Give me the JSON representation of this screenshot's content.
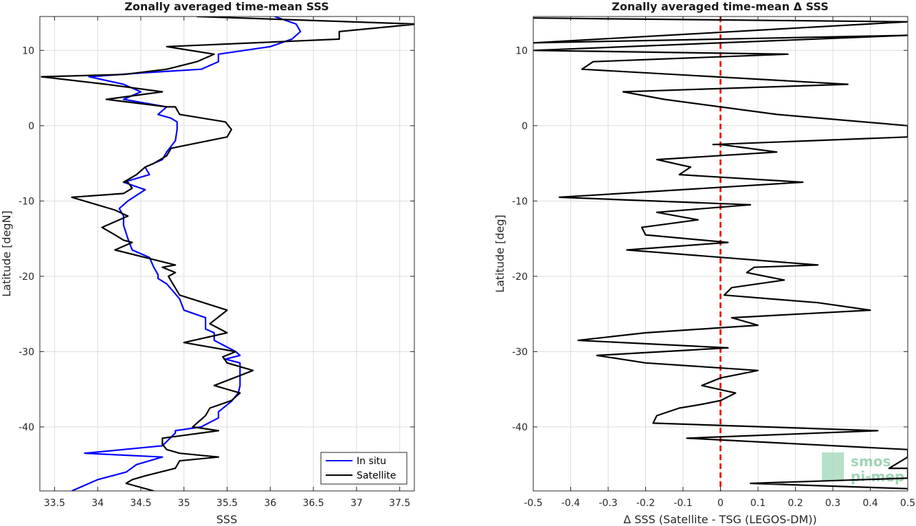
{
  "chart_data": [
    {
      "type": "line",
      "title": "Zonally averaged time-mean SSS",
      "xlabel": "SSS",
      "ylabel": "Latitude [degN]",
      "xlim": [
        33.33,
        37.67
      ],
      "ylim": [
        -48.5,
        14.5
      ],
      "xticks": [
        33.5,
        34,
        34.5,
        35,
        35.5,
        36,
        36.5,
        37,
        37.5
      ],
      "yticks": [
        -40,
        -30,
        -20,
        -10,
        0,
        10
      ],
      "grid": true,
      "legend": "bottom-right",
      "series": [
        {
          "name": "In situ",
          "color": "#0000ff",
          "points": [
            [
              33.7,
              -48.5
            ],
            [
              34.0,
              -47.0
            ],
            [
              34.33,
              -46.0
            ],
            [
              34.45,
              -45.0
            ],
            [
              34.75,
              -44.0
            ],
            [
              33.85,
              -43.5
            ],
            [
              34.75,
              -42.5
            ],
            [
              34.9,
              -40.8
            ],
            [
              34.9,
              -40.5
            ],
            [
              35.2,
              -40.0
            ],
            [
              35.4,
              -38.8
            ],
            [
              35.4,
              -38.0
            ],
            [
              35.55,
              -36.6
            ],
            [
              35.63,
              -35.5
            ],
            [
              35.65,
              -34.5
            ],
            [
              35.65,
              -33.5
            ],
            [
              35.65,
              -32.0
            ],
            [
              35.65,
              -31.5
            ],
            [
              35.48,
              -31.0
            ],
            [
              35.65,
              -30.5
            ],
            [
              35.6,
              -30.0
            ],
            [
              35.35,
              -28.5
            ],
            [
              35.35,
              -27.5
            ],
            [
              35.25,
              -27.0
            ],
            [
              35.25,
              -25.5
            ],
            [
              35.0,
              -24.5
            ],
            [
              34.95,
              -23.0
            ],
            [
              34.8,
              -21.0
            ],
            [
              34.7,
              -20.3
            ],
            [
              34.7,
              -19.8
            ],
            [
              34.65,
              -18.8
            ],
            [
              34.6,
              -17.5
            ],
            [
              34.4,
              -16.5
            ],
            [
              34.35,
              -15.0
            ],
            [
              34.3,
              -13.2
            ],
            [
              34.3,
              -12.0
            ],
            [
              34.25,
              -11.0
            ],
            [
              34.35,
              -10.0
            ],
            [
              34.55,
              -8.5
            ],
            [
              34.3,
              -7.5
            ],
            [
              34.6,
              -6.5
            ],
            [
              34.55,
              -5.5
            ],
            [
              34.75,
              -4.5
            ],
            [
              34.8,
              -3.5
            ],
            [
              34.9,
              -2.0
            ],
            [
              34.92,
              -0.5
            ],
            [
              34.92,
              0.5
            ],
            [
              34.85,
              1.0
            ],
            [
              34.7,
              1.5
            ],
            [
              34.8,
              2.5
            ],
            [
              34.3,
              3.5
            ],
            [
              34.5,
              4.5
            ],
            [
              34.3,
              5.5
            ],
            [
              33.9,
              6.5
            ],
            [
              34.5,
              7.0
            ],
            [
              35.2,
              7.5
            ],
            [
              35.4,
              8.5
            ],
            [
              35.4,
              9.5
            ],
            [
              36.0,
              10.5
            ],
            [
              36.25,
              11.5
            ],
            [
              36.35,
              12.5
            ],
            [
              36.3,
              13.5
            ],
            [
              36.05,
              14.5
            ]
          ]
        },
        {
          "name": "Satellite",
          "color": "#000000",
          "points": [
            [
              34.65,
              -48.5
            ],
            [
              34.33,
              -47.5
            ],
            [
              34.4,
              -47.0
            ],
            [
              34.55,
              -46.5
            ],
            [
              34.9,
              -45.5
            ],
            [
              34.95,
              -44.5
            ],
            [
              35.4,
              -44.0
            ],
            [
              34.95,
              -43.5
            ],
            [
              34.8,
              -43.0
            ],
            [
              34.75,
              -42.3
            ],
            [
              34.75,
              -41.5
            ],
            [
              35.4,
              -40.5
            ],
            [
              35.1,
              -40.0
            ],
            [
              35.25,
              -38.5
            ],
            [
              35.3,
              -37.5
            ],
            [
              35.55,
              -36.5
            ],
            [
              35.65,
              -35.5
            ],
            [
              35.35,
              -34.5
            ],
            [
              35.8,
              -32.5
            ],
            [
              35.5,
              -31.5
            ],
            [
              35.45,
              -30.7
            ],
            [
              35.6,
              -30.0
            ],
            [
              35.0,
              -28.8
            ],
            [
              35.5,
              -27.5
            ],
            [
              35.3,
              -26.3
            ],
            [
              35.5,
              -24.5
            ],
            [
              34.95,
              -22.5
            ],
            [
              34.85,
              -20.6
            ],
            [
              34.82,
              -20.0
            ],
            [
              34.9,
              -19.5
            ],
            [
              34.75,
              -18.8
            ],
            [
              34.9,
              -18.5
            ],
            [
              34.2,
              -16.5
            ],
            [
              34.4,
              -15.5
            ],
            [
              34.3,
              -15.2
            ],
            [
              34.2,
              -14.5
            ],
            [
              34.05,
              -13.5
            ],
            [
              34.35,
              -12.0
            ],
            [
              34.2,
              -11.2
            ],
            [
              33.7,
              -9.5
            ],
            [
              34.3,
              -9.0
            ],
            [
              34.4,
              -8.3
            ],
            [
              34.35,
              -7.5
            ],
            [
              34.3,
              -7.5
            ],
            [
              34.45,
              -6.5
            ],
            [
              34.55,
              -5.5
            ],
            [
              34.65,
              -5.0
            ],
            [
              34.8,
              -4.0
            ],
            [
              34.85,
              -3.0
            ],
            [
              35.5,
              -1.5
            ],
            [
              35.55,
              -0.5
            ],
            [
              35.48,
              0.5
            ],
            [
              34.95,
              1.5
            ],
            [
              34.9,
              2.5
            ],
            [
              34.8,
              2.5
            ],
            [
              34.1,
              3.5
            ],
            [
              34.75,
              4.5
            ],
            [
              34.1,
              5.5
            ],
            [
              33.35,
              6.5
            ],
            [
              34.3,
              6.8
            ],
            [
              34.8,
              7.5
            ],
            [
              35.15,
              8.5
            ],
            [
              35.35,
              9.5
            ],
            [
              34.8,
              10.5
            ],
            [
              36.8,
              11.5
            ],
            [
              36.8,
              12.5
            ],
            [
              37.7,
              13.5
            ],
            [
              35.15,
              14.5
            ]
          ]
        }
      ]
    },
    {
      "type": "line",
      "title": "Zonally averaged time-mean Δ SSS",
      "xlabel": "Δ SSS (Satellite - TSG (LEGOS-DM))",
      "ylabel": "Latitude [deg]",
      "xlim": [
        -0.5,
        0.5
      ],
      "ylim": [
        -48.5,
        14.5
      ],
      "xticks": [
        -0.5,
        -0.4,
        -0.3,
        -0.2,
        -0.1,
        0,
        0.1,
        0.2,
        0.3,
        0.4,
        0.5
      ],
      "yticks": [
        -40,
        -30,
        -20,
        -10,
        0,
        10
      ],
      "grid": true,
      "reference_line": {
        "x": 0,
        "color": "#e8261b",
        "style": "dashed"
      },
      "series": [
        {
          "name": "",
          "color": "#000000",
          "points": [
            [
              0.5,
              -48.2
            ],
            [
              0.08,
              -47.5
            ],
            [
              0.5,
              -46.8
            ],
            [
              0.5,
              -45.5
            ],
            [
              0.45,
              -45.5
            ],
            [
              0.5,
              -44.0
            ],
            [
              0.5,
              -43.0
            ],
            [
              -0.09,
              -41.5
            ],
            [
              0.42,
              -40.5
            ],
            [
              -0.18,
              -39.5
            ],
            [
              -0.17,
              -38.5
            ],
            [
              -0.11,
              -37.5
            ],
            [
              -0.05,
              -37.0
            ],
            [
              0.0,
              -36.5
            ],
            [
              0.04,
              -35.5
            ],
            [
              -0.05,
              -34.5
            ],
            [
              0.0,
              -33.5
            ],
            [
              0.1,
              -32.5
            ],
            [
              -0.2,
              -31.5
            ],
            [
              -0.33,
              -30.5
            ],
            [
              0.02,
              -29.5
            ],
            [
              -0.38,
              -28.5
            ],
            [
              -0.2,
              -27.5
            ],
            [
              0.1,
              -26.5
            ],
            [
              0.03,
              -25.5
            ],
            [
              0.4,
              -24.5
            ],
            [
              0.26,
              -23.5
            ],
            [
              0.01,
              -22.5
            ],
            [
              0.03,
              -21.5
            ],
            [
              0.17,
              -20.5
            ],
            [
              0.07,
              -19.5
            ],
            [
              0.09,
              -18.8
            ],
            [
              0.26,
              -18.5
            ],
            [
              -0.25,
              -16.5
            ],
            [
              0.02,
              -15.5
            ],
            [
              -0.2,
              -14.5
            ],
            [
              -0.21,
              -13.5
            ],
            [
              -0.06,
              -12.5
            ],
            [
              -0.17,
              -11.5
            ],
            [
              0.08,
              -10.5
            ],
            [
              -0.43,
              -9.5
            ],
            [
              0.22,
              -7.5
            ],
            [
              -0.11,
              -6.5
            ],
            [
              -0.08,
              -5.5
            ],
            [
              -0.17,
              -4.5
            ],
            [
              0.15,
              -3.5
            ],
            [
              0.0,
              -2.5
            ],
            [
              -0.02,
              -2.5
            ],
            [
              0.5,
              -1.5
            ],
            [
              0.5,
              0.0
            ],
            [
              0.15,
              1.5
            ],
            [
              -0.15,
              3.5
            ],
            [
              -0.26,
              4.5
            ],
            [
              0.34,
              5.5
            ],
            [
              -0.37,
              7.5
            ],
            [
              -0.34,
              8.5
            ],
            [
              0.18,
              9.5
            ],
            [
              -0.5,
              10.0
            ],
            [
              0.5,
              12.0
            ],
            [
              -0.5,
              11.0
            ],
            [
              0.5,
              13.8
            ],
            [
              -0.5,
              14.3
            ]
          ]
        }
      ]
    }
  ],
  "legend": {
    "items": [
      {
        "label": "In situ",
        "color": "#0000ff"
      },
      {
        "label": "Satellite",
        "color": "#000000"
      }
    ]
  },
  "logo": {
    "line1": "smos",
    "line2": "pi-mep"
  }
}
